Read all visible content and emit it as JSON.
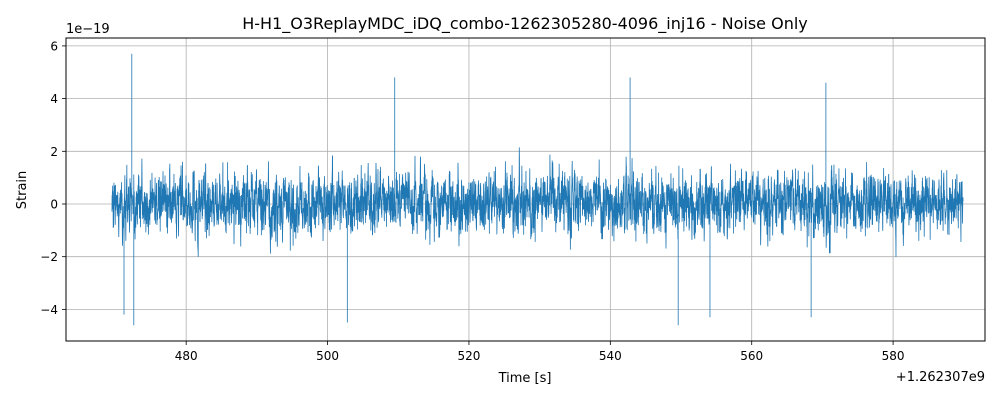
{
  "chart_data": {
    "type": "line",
    "title": "H-H1_O3ReplayMDC_iDQ_combo-1262305280-4096_inj16 - Noise Only",
    "xlabel": "Time [s]",
    "ylabel": "Strain",
    "x_offset_label": "+1.262307e9",
    "y_scale_label": "1e−19",
    "xlim": [
      463.0,
      593.0
    ],
    "ylim": [
      -5.2,
      6.3
    ],
    "x_ticks": [
      480,
      500,
      520,
      540,
      560,
      580
    ],
    "x_tick_labels": [
      "480",
      "500",
      "520",
      "540",
      "560",
      "580"
    ],
    "y_ticks": [
      -4,
      -2,
      0,
      2,
      4,
      6
    ],
    "y_tick_labels": [
      "−4",
      "−2",
      "0",
      "2",
      "4",
      "6"
    ],
    "grid": true,
    "series": [
      {
        "color": "#1f77b4",
        "x_range": [
          469.5,
          589.9
        ],
        "typical_amplitude": 1.7,
        "peaks": [
          {
            "x": 472.3,
            "y": 5.7
          },
          {
            "x": 472.6,
            "y": -4.6
          },
          {
            "x": 471.2,
            "y": -4.2
          },
          {
            "x": 509.5,
            "y": 4.8
          },
          {
            "x": 502.8,
            "y": -4.5
          },
          {
            "x": 542.8,
            "y": 4.8
          },
          {
            "x": 549.6,
            "y": -4.6
          },
          {
            "x": 554.1,
            "y": -4.3
          },
          {
            "x": 570.5,
            "y": 4.6
          },
          {
            "x": 568.4,
            "y": -4.3
          }
        ]
      }
    ]
  }
}
